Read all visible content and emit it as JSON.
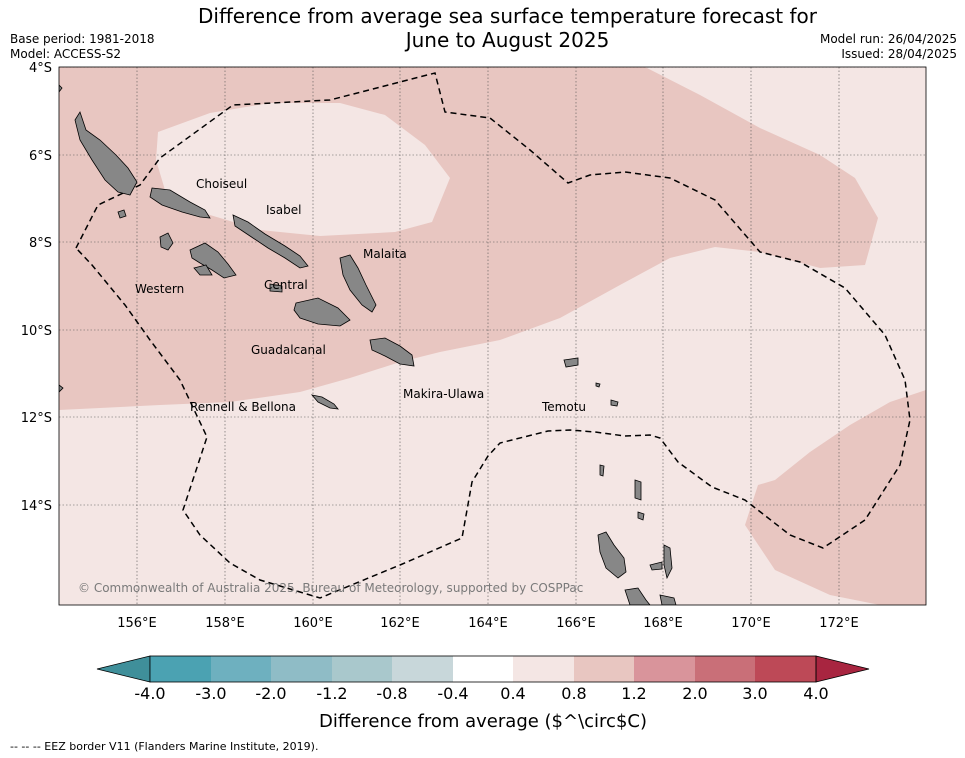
{
  "title": {
    "line1": "Difference from average sea surface temperature forecast for",
    "line2": "June to August 2025"
  },
  "meta": {
    "base_period": "Base period: 1981-2018",
    "model": "Model: ACCESS-S2",
    "model_run": "Model run: 26/04/2025",
    "issued": "Issued: 28/04/2025"
  },
  "map": {
    "lat_ticks": [
      "4°S",
      "6°S",
      "8°S",
      "10°S",
      "12°S",
      "14°S"
    ],
    "lon_ticks": [
      "156°E",
      "158°E",
      "160°E",
      "162°E",
      "164°E",
      "166°E",
      "168°E",
      "170°E",
      "172°E"
    ],
    "region_labels": {
      "choiseul": "Choiseul",
      "isabel": "Isabel",
      "malaita": "Malaita",
      "western": "Western",
      "central": "Central",
      "guadalcanal": "Guadalcanal",
      "makira": "Makira-Ulawa",
      "rennell": "Rennell & Bellona",
      "temotu": "Temotu"
    },
    "copyright": "© Commonwealth of Australia 2025, Bureau of Meteorology, supported by COSPPac",
    "colors": {
      "anomaly_0_4_to_0_8": "#f4e6e4",
      "anomaly_0_8_to_1_2": "#e8c6c1",
      "land": "#878787"
    }
  },
  "colorbar": {
    "ticks": [
      "-4.0",
      "-3.0",
      "-2.0",
      "-1.2",
      "-0.8",
      "-0.4",
      "0.4",
      "0.8",
      "1.2",
      "2.0",
      "3.0",
      "4.0"
    ],
    "colors": [
      "#3f8f9a",
      "#4ba2b2",
      "#6eb0bf",
      "#8fbcc6",
      "#a9c8cc",
      "#c8d7da",
      "#ffffff",
      "#f4e6e4",
      "#e8c6c1",
      "#d9949b",
      "#c96f78",
      "#bd4957",
      "#a82540"
    ],
    "label": "Difference from average ($^\\circ$C)"
  },
  "footnote": "-- -- -- EEZ border V11 (Flanders Marine Institute, 2019)."
}
